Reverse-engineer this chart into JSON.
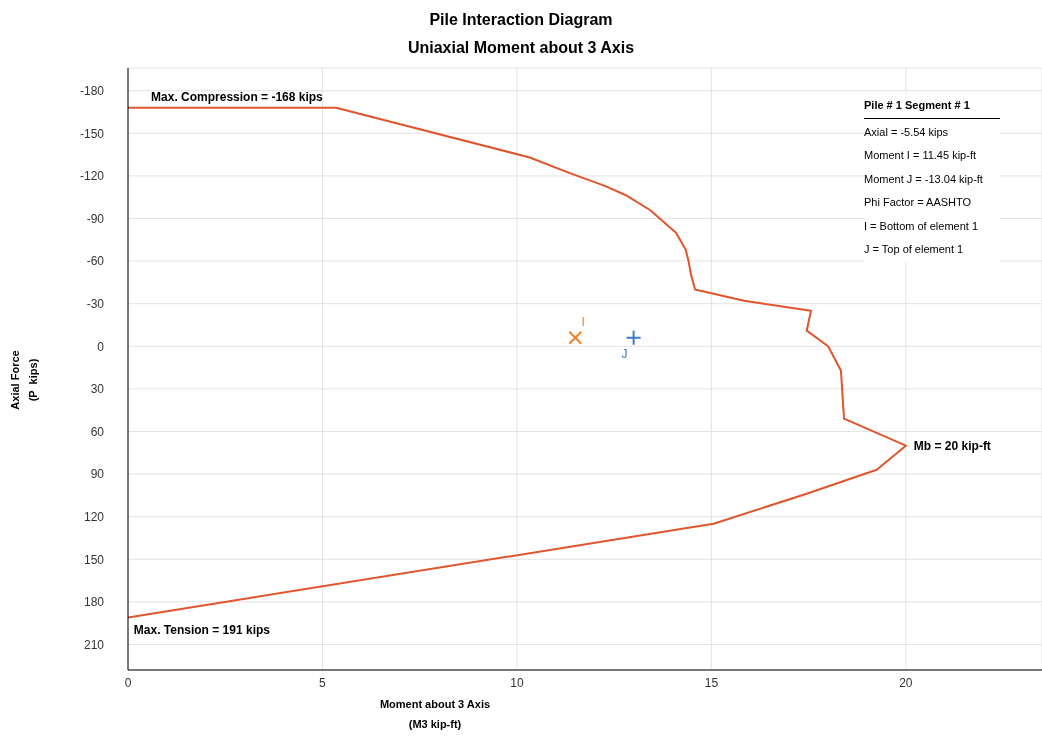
{
  "chart_data": {
    "type": "line",
    "title": "Pile Interaction Diagram",
    "subtitle": "Uniaxial Moment about 3 Axis",
    "xlabel": "Moment about 3 Axis\n(M3 kip-ft)",
    "ylabel": "Axial Force\n(P  kips)",
    "series": [
      {
        "color": "#e0552b",
        "x": [
          0,
          5.35,
          10.33,
          11.36,
          12.26,
          12.83,
          13.42,
          14.09,
          14.34,
          14.42,
          14.47,
          14.58,
          15.84,
          17.56,
          17.45,
          18.0,
          18.33,
          18.41,
          20,
          19.25,
          17.43,
          15.06,
          14.37,
          0
        ],
        "values": [
          -168,
          -168,
          -133,
          -122,
          -113,
          -106,
          -96,
          -80,
          -68,
          -59,
          -51,
          -40,
          -32,
          -25,
          -11,
          0,
          17,
          51,
          70,
          87,
          104,
          125,
          128,
          191
        ]
      },
      {
        "type": "scatter",
        "name": "I",
        "color": "#f0802a",
        "marker": "cross",
        "x": [
          11.5
        ],
        "values": [
          -6
        ]
      },
      {
        "type": "scatter",
        "name": "J",
        "color": "#3b7bc8",
        "marker": "plus",
        "x": [
          13.0
        ],
        "values": [
          -6
        ]
      }
    ],
    "xlim": [
      0,
      23.5
    ],
    "xticks": [
      0,
      5,
      10,
      15,
      20
    ],
    "ylim": [
      228,
      -196
    ],
    "yticks": [
      -180,
      -150,
      -120,
      -90,
      -60,
      -30,
      0,
      30,
      60,
      90,
      120,
      150,
      180,
      210
    ],
    "grid": true,
    "legend": false,
    "annotations": [
      {
        "text": "Max. Compression = -168 kips",
        "x": 2.8,
        "y": -168
      },
      {
        "text": "Max. Tension = 191 kips",
        "x": 1.9,
        "y": 183
      },
      {
        "text": "Mb = 20 kip-ft",
        "x": 20,
        "y": 70
      },
      "Pile # 1   Segment # 1",
      "Axial = -5.54 kips",
      "Moment I = 11.45 kip-ft",
      "Moment J = -13.04 kip-ft",
      "Phi Factor = AASHTO",
      "I = Bottom of element 1",
      "J = Top of element 1"
    ]
  }
}
